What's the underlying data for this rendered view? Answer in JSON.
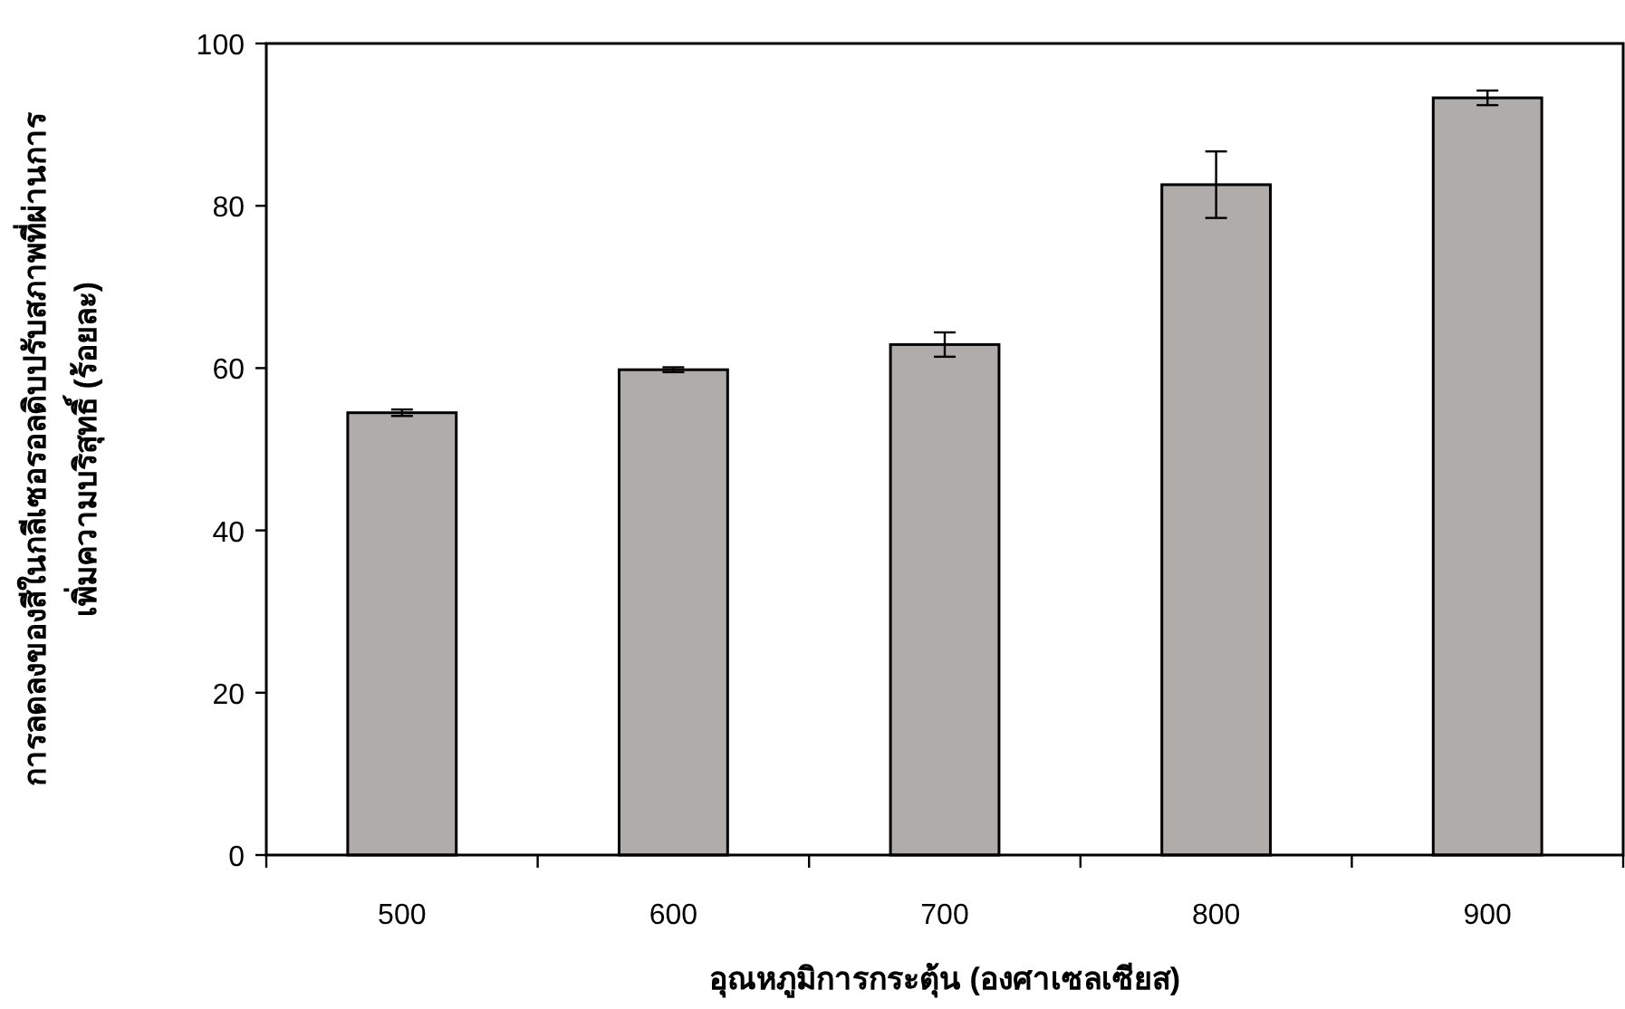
{
  "chart_data": {
    "type": "bar",
    "xlabel": "อุณหภูมิการกระตุ้น (องศาเซลเซียส)",
    "ylabel": "การลดลงของสีในกลีเซอรอลดิบปรับสภาพที่ผ่านการ\nเพิ่มความบริสุทธิ์ (ร้อยละ)",
    "categories": [
      "500",
      "600",
      "700",
      "800",
      "900"
    ],
    "series": [
      {
        "color": "#b0acaa",
        "values": [
          54.5,
          59.8,
          62.9,
          82.6,
          93.3
        ],
        "errors": [
          0.4,
          0.3,
          1.5,
          4.1,
          0.9
        ]
      }
    ],
    "ylim": [
      0,
      100
    ],
    "yticks": [
      0,
      20,
      40,
      60,
      80,
      100
    ],
    "grid": false
  }
}
